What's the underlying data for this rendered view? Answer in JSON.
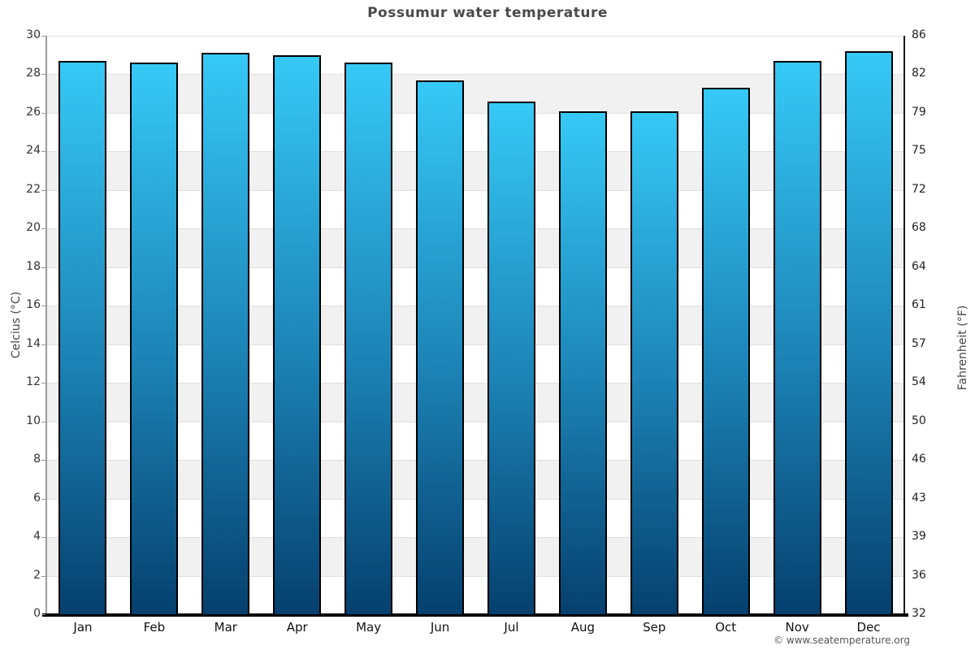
{
  "title": "Possumur water temperature",
  "watermark": "© www.seatemperature.org",
  "axis": {
    "left_title": "Celcius (°C)",
    "right_title": "Fahrenheit (°F)"
  },
  "chart_data": {
    "type": "bar",
    "title": "Possumur water temperature",
    "categories": [
      "Jan",
      "Feb",
      "Mar",
      "Apr",
      "May",
      "Jun",
      "Jul",
      "Aug",
      "Sep",
      "Oct",
      "Nov",
      "Dec"
    ],
    "values": [
      28.7,
      28.6,
      29.1,
      29.0,
      28.6,
      27.7,
      26.6,
      26.1,
      26.1,
      27.3,
      28.7,
      29.2
    ],
    "series_name": "Water temperature (°C)",
    "xlabel": "",
    "ylabel_left": "Celcius (°C)",
    "ylabel_right": "Fahrenheit (°F)",
    "ylim_celsius": [
      0,
      30
    ],
    "celsius_ticks": [
      0,
      2,
      4,
      6,
      8,
      10,
      12,
      14,
      16,
      18,
      20,
      22,
      24,
      26,
      28,
      30
    ],
    "fahrenheit_ticks": [
      32,
      36,
      39,
      43,
      46,
      50,
      54,
      57,
      61,
      64,
      68,
      72,
      75,
      79,
      82,
      86
    ],
    "grid": "alternating-horizontal-bands-every-2C",
    "legend": "none",
    "colors": {
      "bar_gradient_top": "#36c9f6",
      "bar_gradient_mid": "#1d85b8",
      "bar_gradient_bottom": "#05406e",
      "bar_border": "#000000",
      "band_gray": "#f1f1f1",
      "gridline": "#e0e0e0",
      "title_text": "#4a4a4a",
      "tick_text": "#333333"
    }
  }
}
